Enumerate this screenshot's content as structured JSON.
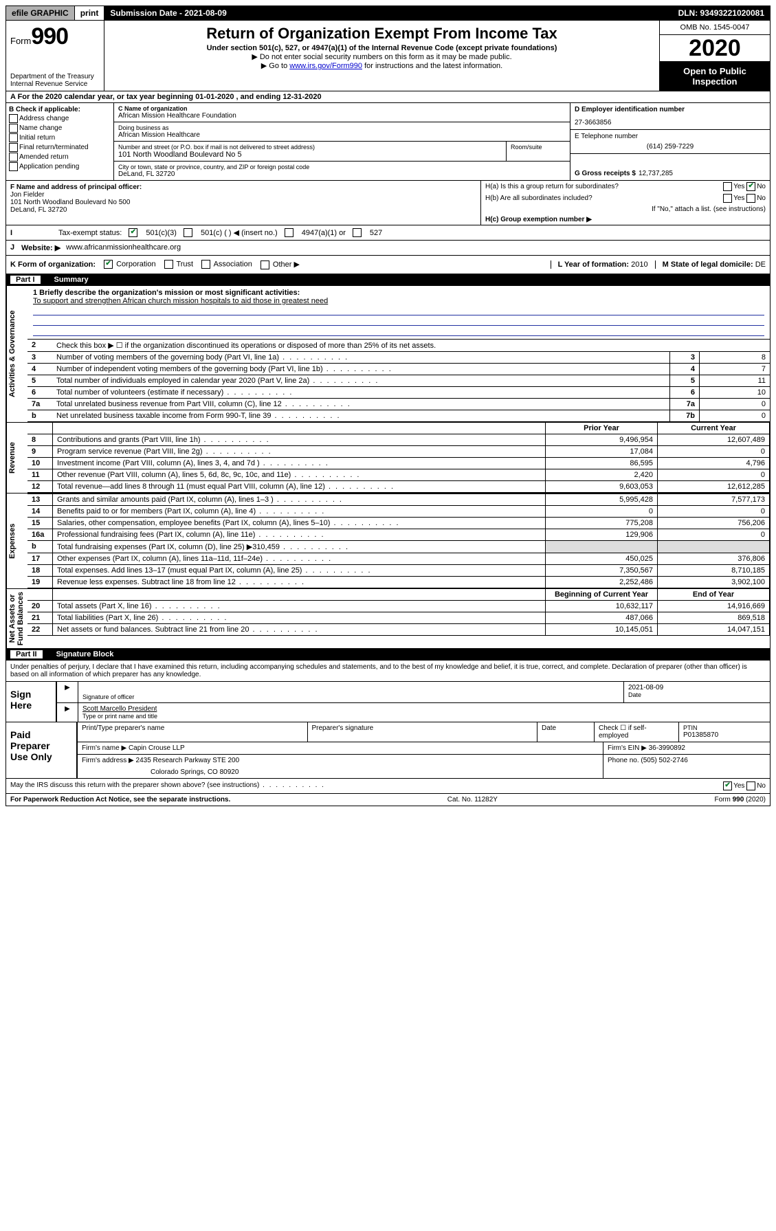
{
  "topbar": {
    "efile": "efile GRAPHIC",
    "print": "print",
    "subdate_label": "Submission Date - 2021-08-09",
    "dln": "DLN: 93493221020081"
  },
  "header": {
    "form_prefix": "Form",
    "form_num": "990",
    "dept": "Department of the Treasury\nInternal Revenue Service",
    "title": "Return of Organization Exempt From Income Tax",
    "sub": "Under section 501(c), 527, or 4947(a)(1) of the Internal Revenue Code (except private foundations)",
    "note1": "▶ Do not enter social security numbers on this form as it may be made public.",
    "note2_pre": "▶ Go to ",
    "note2_link": "www.irs.gov/Form990",
    "note2_post": " for instructions and the latest information.",
    "omb": "OMB No. 1545-0047",
    "year": "2020",
    "open": "Open to Public\nInspection"
  },
  "rowA": "A For the 2020 calendar year, or tax year beginning 01-01-2020   , and ending 12-31-2020",
  "colB": {
    "hdr": "B Check if applicable:",
    "items": [
      "Address change",
      "Name change",
      "Initial return",
      "Final return/terminated",
      "Amended return",
      "Application pending"
    ]
  },
  "colC": {
    "name_lbl": "C Name of organization",
    "name": "African Mission Healthcare Foundation",
    "dba_lbl": "Doing business as",
    "dba": "African Mission Healthcare",
    "addr_lbl": "Number and street (or P.O. box if mail is not delivered to street address)",
    "addr": "101 North Woodland Boulevard No 5",
    "room_lbl": "Room/suite",
    "city_lbl": "City or town, state or province, country, and ZIP or foreign postal code",
    "city": "DeLand, FL  32720"
  },
  "colD": {
    "ein_lbl": "D Employer identification number",
    "ein": "27-3663856",
    "phone_lbl": "E Telephone number",
    "phone": "(614) 259-7229",
    "gross_lbl": "G Gross receipts $",
    "gross": "12,737,285"
  },
  "colF": {
    "lbl": "F  Name and address of principal officer:",
    "name": "Jon Fielder",
    "addr": "101 North Woodland Boulevard No 500\nDeLand, FL  32720"
  },
  "colH": {
    "ha": "H(a)  Is this a group return for subordinates?",
    "hb": "H(b)  Are all subordinates included?",
    "hb_note": "If \"No,\" attach a list. (see instructions)",
    "hc": "H(c)  Group exemption number ▶",
    "yes": "Yes",
    "no": "No"
  },
  "rowI": {
    "lbl": "Tax-exempt status:",
    "o1": "501(c)(3)",
    "o2": "501(c) (   ) ◀ (insert no.)",
    "o3": "4947(a)(1) or",
    "o4": "527"
  },
  "rowJ": {
    "lbl": "Website: ▶",
    "url": "www.africanmissionhealthcare.org"
  },
  "rowK": {
    "lbl": "K Form of organization:",
    "o1": "Corporation",
    "o2": "Trust",
    "o3": "Association",
    "o4": "Other ▶",
    "l_lbl": "L Year of formation:",
    "l_val": "2010",
    "m_lbl": "M State of legal domicile:",
    "m_val": "DE"
  },
  "parts": {
    "p1": "Part I",
    "p1t": "Summary",
    "p2": "Part II",
    "p2t": "Signature Block"
  },
  "tabs": {
    "ag": "Activities & Governance",
    "rev": "Revenue",
    "exp": "Expenses",
    "na": "Net Assets or\nFund Balances"
  },
  "mission": {
    "q1": "1  Briefly describe the organization's mission or most significant activities:",
    "text": "To support and strengthen African church mission hospitals to aid those in greatest need"
  },
  "ag_rows": [
    {
      "n": "2",
      "lbl": "Check this box ▶ ☐  if the organization discontinued its operations or disposed of more than 25% of its net assets.",
      "val": "",
      "num": ""
    },
    {
      "n": "3",
      "lbl": "Number of voting members of the governing body (Part VI, line 1a)",
      "num": "3",
      "val": "8"
    },
    {
      "n": "4",
      "lbl": "Number of independent voting members of the governing body (Part VI, line 1b)",
      "num": "4",
      "val": "7"
    },
    {
      "n": "5",
      "lbl": "Total number of individuals employed in calendar year 2020 (Part V, line 2a)",
      "num": "5",
      "val": "11"
    },
    {
      "n": "6",
      "lbl": "Total number of volunteers (estimate if necessary)",
      "num": "6",
      "val": "10"
    },
    {
      "n": "7a",
      "lbl": "Total unrelated business revenue from Part VIII, column (C), line 12",
      "num": "7a",
      "val": "0"
    },
    {
      "n": "b",
      "lbl": "Net unrelated business taxable income from Form 990-T, line 39",
      "num": "7b",
      "val": "0"
    }
  ],
  "twocol_hdr": {
    "prior": "Prior Year",
    "current": "Current Year",
    "boc": "Beginning of Current Year",
    "eoy": "End of Year"
  },
  "rev_rows": [
    {
      "n": "8",
      "lbl": "Contributions and grants (Part VIII, line 1h)",
      "p": "9,496,954",
      "c": "12,607,489"
    },
    {
      "n": "9",
      "lbl": "Program service revenue (Part VIII, line 2g)",
      "p": "17,084",
      "c": "0"
    },
    {
      "n": "10",
      "lbl": "Investment income (Part VIII, column (A), lines 3, 4, and 7d )",
      "p": "86,595",
      "c": "4,796"
    },
    {
      "n": "11",
      "lbl": "Other revenue (Part VIII, column (A), lines 5, 6d, 8c, 9c, 10c, and 11e)",
      "p": "2,420",
      "c": "0"
    },
    {
      "n": "12",
      "lbl": "Total revenue—add lines 8 through 11 (must equal Part VIII, column (A), line 12)",
      "p": "9,603,053",
      "c": "12,612,285"
    }
  ],
  "exp_rows": [
    {
      "n": "13",
      "lbl": "Grants and similar amounts paid (Part IX, column (A), lines 1–3 )",
      "p": "5,995,428",
      "c": "7,577,173"
    },
    {
      "n": "14",
      "lbl": "Benefits paid to or for members (Part IX, column (A), line 4)",
      "p": "0",
      "c": "0"
    },
    {
      "n": "15",
      "lbl": "Salaries, other compensation, employee benefits (Part IX, column (A), lines 5–10)",
      "p": "775,208",
      "c": "756,206"
    },
    {
      "n": "16a",
      "lbl": "Professional fundraising fees (Part IX, column (A), line 11e)",
      "p": "129,906",
      "c": "0"
    },
    {
      "n": "b",
      "lbl": "Total fundraising expenses (Part IX, column (D), line 25) ▶310,459",
      "p": "",
      "c": ""
    },
    {
      "n": "17",
      "lbl": "Other expenses (Part IX, column (A), lines 11a–11d, 11f–24e)",
      "p": "450,025",
      "c": "376,806"
    },
    {
      "n": "18",
      "lbl": "Total expenses. Add lines 13–17 (must equal Part IX, column (A), line 25)",
      "p": "7,350,567",
      "c": "8,710,185"
    },
    {
      "n": "19",
      "lbl": "Revenue less expenses. Subtract line 18 from line 12",
      "p": "2,252,486",
      "c": "3,902,100"
    }
  ],
  "na_rows": [
    {
      "n": "20",
      "lbl": "Total assets (Part X, line 16)",
      "p": "10,632,117",
      "c": "14,916,669"
    },
    {
      "n": "21",
      "lbl": "Total liabilities (Part X, line 26)",
      "p": "487,066",
      "c": "869,518"
    },
    {
      "n": "22",
      "lbl": "Net assets or fund balances. Subtract line 21 from line 20",
      "p": "10,145,051",
      "c": "14,047,151"
    }
  ],
  "sig_decl": "Under penalties of perjury, I declare that I have examined this return, including accompanying schedules and statements, and to the best of my knowledge and belief, it is true, correct, and complete. Declaration of preparer (other than officer) is based on all information of which preparer has any knowledge.",
  "sign_here": "Sign\nHere",
  "sig_officer_lbl": "Signature of officer",
  "sig_date_lbl": "Date",
  "sig_date": "2021-08-09",
  "sig_name": "Scott Marcello  President",
  "sig_name_lbl": "Type or print name and title",
  "paid": {
    "hdr": "Paid\nPreparer\nUse Only",
    "c1": "Print/Type preparer's name",
    "c2": "Preparer's signature",
    "c3": "Date",
    "c4a": "Check ☐ if self-employed",
    "c5": "PTIN",
    "ptin": "P01385870",
    "firm_lbl": "Firm's name    ▶",
    "firm": "Capin Crouse LLP",
    "ein_lbl": "Firm's EIN ▶",
    "ein": "36-3990892",
    "addr_lbl": "Firm's address ▶",
    "addr1": "2435 Research Parkway STE 200",
    "addr2": "Colorado Springs, CO  80920",
    "phone_lbl": "Phone no.",
    "phone": "(505) 502-2746"
  },
  "discuss": "May the IRS discuss this return with the preparer shown above? (see instructions)",
  "footer": {
    "left": "For Paperwork Reduction Act Notice, see the separate instructions.",
    "mid": "Cat. No. 11282Y",
    "right": "Form 990 (2020)"
  }
}
